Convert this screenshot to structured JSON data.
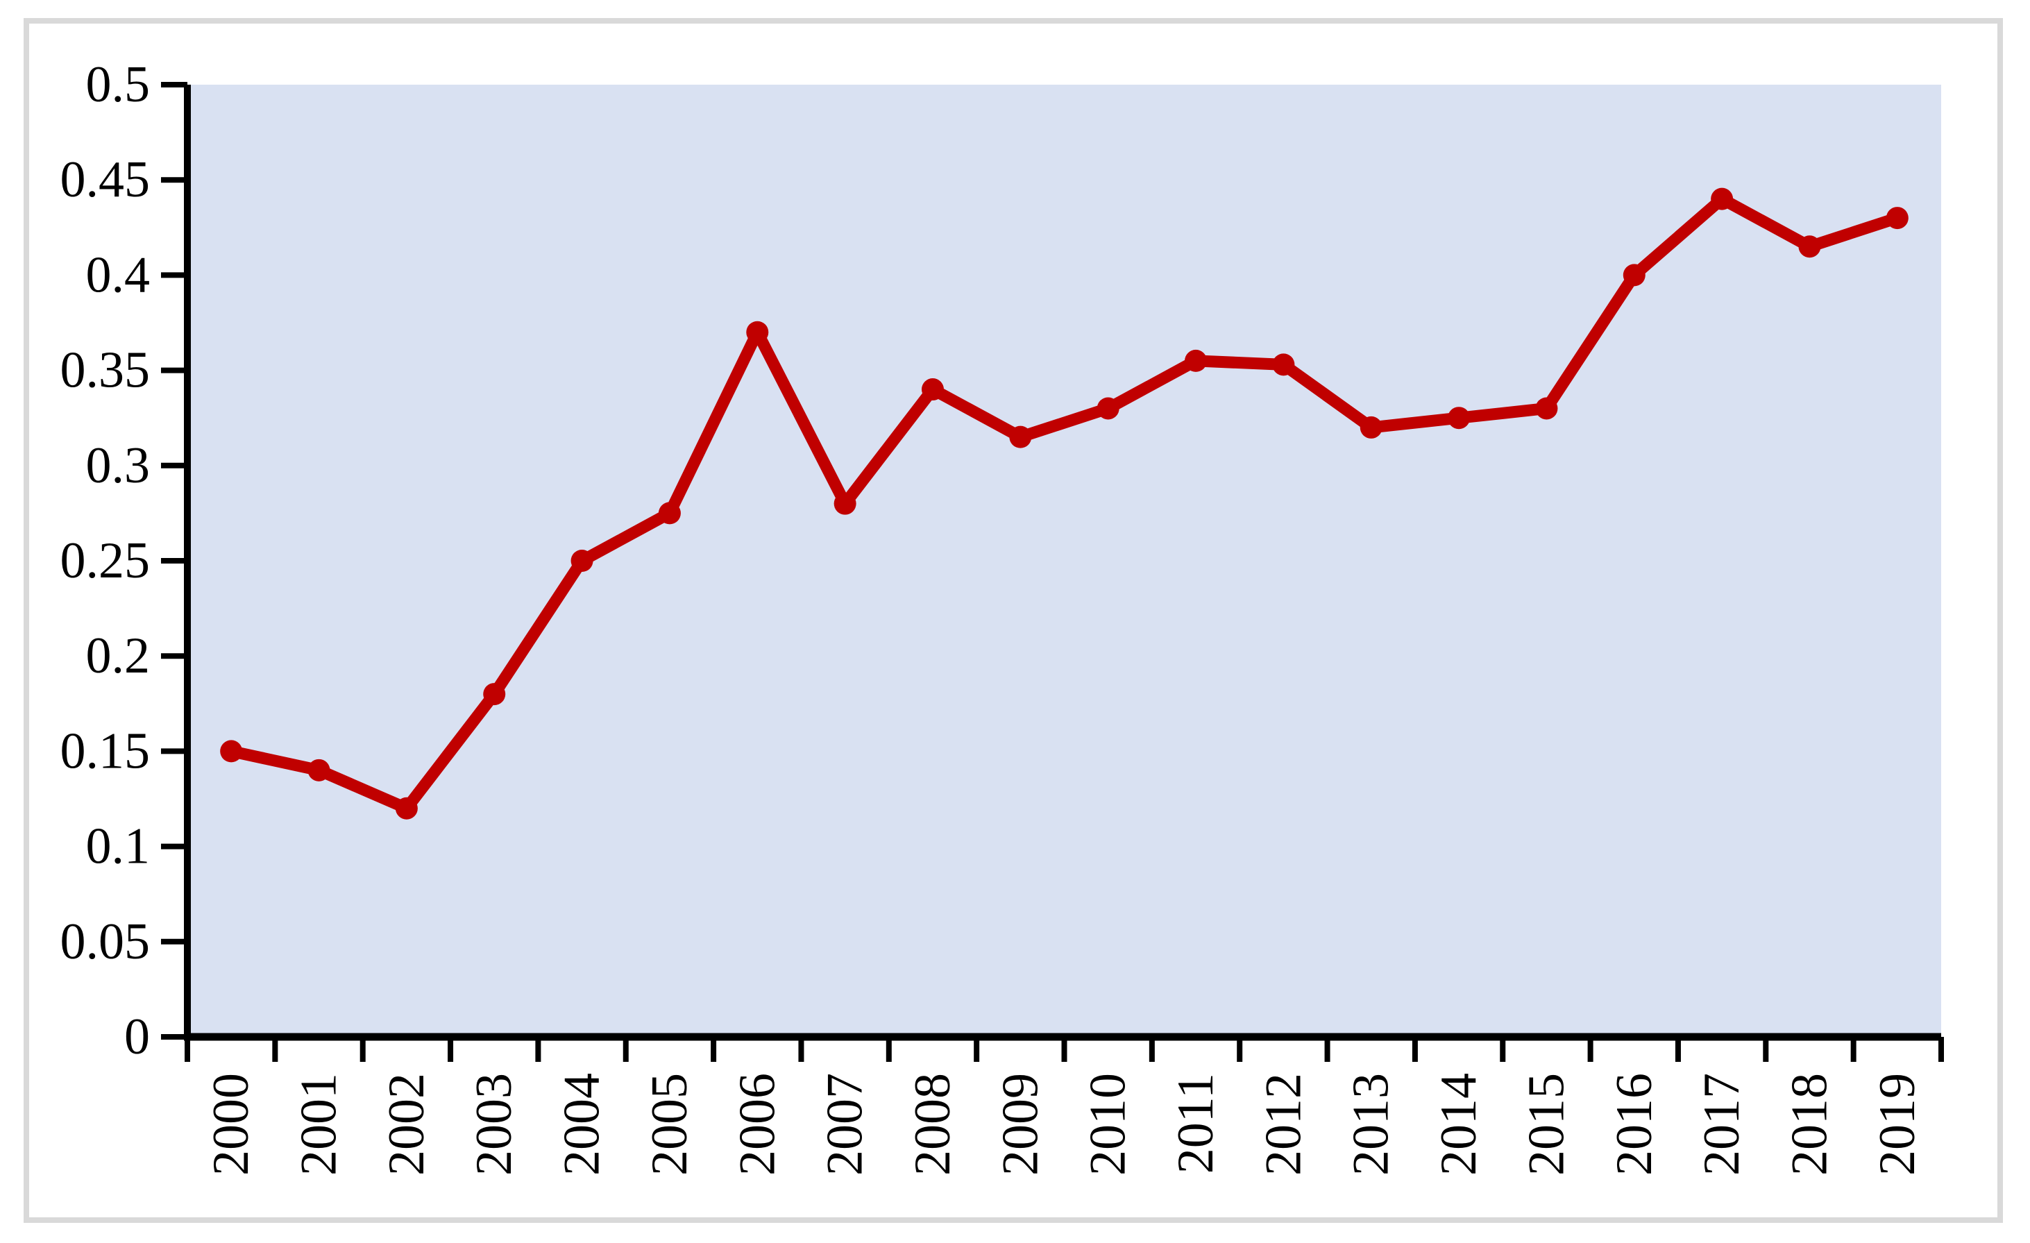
{
  "chart_data": {
    "type": "line",
    "title": "",
    "xlabel": "",
    "ylabel": "",
    "x": [
      "2000",
      "2001",
      "2002",
      "2003",
      "2004",
      "2005",
      "2006",
      "2007",
      "2008",
      "2009",
      "2010",
      "2011",
      "2012",
      "2013",
      "2014",
      "2015",
      "2016",
      "2017",
      "2018",
      "2019"
    ],
    "series": [
      {
        "name": "series-1",
        "color": "#C00000",
        "marker": "circle",
        "values": [
          0.15,
          0.14,
          0.12,
          0.18,
          0.25,
          0.275,
          0.37,
          0.28,
          0.34,
          0.315,
          0.33,
          0.355,
          0.353,
          0.32,
          0.325,
          0.33,
          0.4,
          0.44,
          0.415,
          0.43
        ]
      }
    ],
    "ylim": [
      0,
      0.5
    ],
    "ytick_step": 0.05,
    "y_tick_labels": [
      "0",
      "0.05",
      "0.1",
      "0.15",
      "0.2",
      "0.25",
      "0.3",
      "0.35",
      "0.4",
      "0.45",
      "0.5"
    ],
    "x_tick_rotation_deg": -90,
    "grid": false,
    "legend": "none",
    "plot_background": "#D9E1F2",
    "axis_color": "#000000",
    "frame_border_color": "#D9D9D9",
    "page_background": "#FFFFFF"
  }
}
